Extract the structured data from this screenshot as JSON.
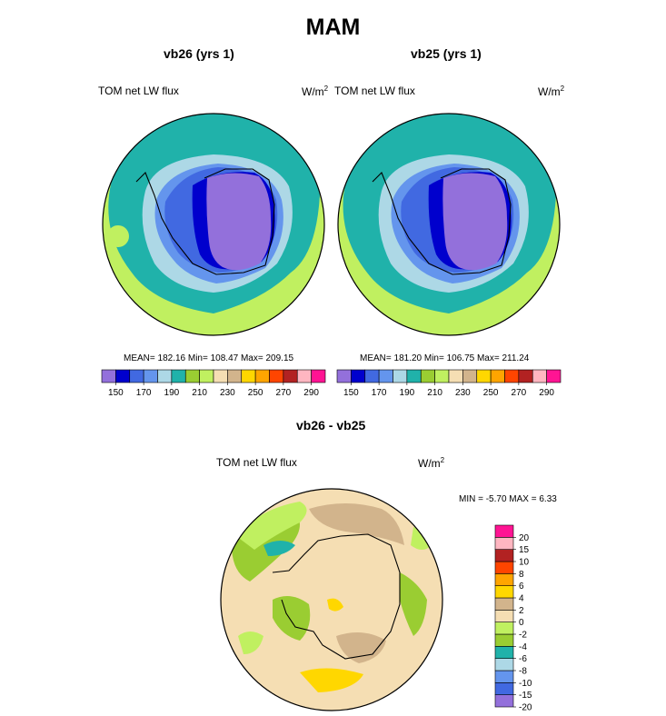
{
  "page": {
    "title": "MAM"
  },
  "panels": [
    {
      "id": "vb26",
      "title": "vb26 (yrs 1)",
      "left_label": "TOM net LW flux",
      "units_base": "W/m",
      "units_exp": "2",
      "stats": "MEAN= 182.16  Min= 108.47  Max= 209.15"
    },
    {
      "id": "vb25",
      "title": "vb25 (yrs 1)",
      "left_label": "TOM net LW flux",
      "units_base": "W/m",
      "units_exp": "2",
      "stats": "MEAN= 181.20  Min= 106.75  Max= 211.24"
    }
  ],
  "diff_panel": {
    "title": "vb26 - vb25",
    "left_label": "TOM net LW flux",
    "units_base": "W/m",
    "units_exp": "2",
    "minmax": "MIN =  -5.70 MAX =   6.33"
  },
  "chart_data": [
    {
      "type": "heatmap",
      "title": "vb26 (yrs 1)",
      "projection": "south polar stereographic",
      "variable": "TOM net LW flux",
      "units": "W/m2",
      "mean": 182.16,
      "min": 108.47,
      "max": 209.15,
      "colorbar_levels": [
        150,
        160,
        170,
        180,
        190,
        200,
        210,
        220,
        230,
        240,
        250,
        260,
        270,
        280,
        290
      ],
      "colorbar_ticks": [
        "150",
        "170",
        "190",
        "210",
        "230",
        "250",
        "270",
        "290"
      ],
      "colorbar_colors": [
        "#9370DB",
        "#0000CD",
        "#4169E1",
        "#6495ED",
        "#ADD8E6",
        "#20B2AA",
        "#9ACD32",
        "#C0F060",
        "#F5DEB3",
        "#D2B48C",
        "#FFD700",
        "#FFA500",
        "#FF4500",
        "#B22222",
        "#FFB6C1",
        "#FF1493"
      ]
    },
    {
      "type": "heatmap",
      "title": "vb25 (yrs 1)",
      "projection": "south polar stereographic",
      "variable": "TOM net LW flux",
      "units": "W/m2",
      "mean": 181.2,
      "min": 106.75,
      "max": 211.24,
      "colorbar_levels": [
        150,
        160,
        170,
        180,
        190,
        200,
        210,
        220,
        230,
        240,
        250,
        260,
        270,
        280,
        290
      ],
      "colorbar_ticks": [
        "150",
        "170",
        "190",
        "210",
        "230",
        "250",
        "270",
        "290"
      ],
      "colorbar_colors": [
        "#9370DB",
        "#0000CD",
        "#4169E1",
        "#6495ED",
        "#ADD8E6",
        "#20B2AA",
        "#9ACD32",
        "#C0F060",
        "#F5DEB3",
        "#D2B48C",
        "#FFD700",
        "#FFA500",
        "#FF4500",
        "#B22222",
        "#FFB6C1",
        "#FF1493"
      ]
    },
    {
      "type": "heatmap",
      "title": "vb26 - vb25",
      "projection": "south polar stereographic",
      "variable": "TOM net LW flux",
      "units": "W/m2",
      "min": -5.7,
      "max": 6.33,
      "colorbar_levels": [
        -20,
        -15,
        -10,
        -8,
        -6,
        -4,
        -2,
        0,
        2,
        4,
        6,
        8,
        10,
        15,
        20
      ],
      "colorbar_ticks": [
        "20",
        "15",
        "10",
        "8",
        "6",
        "4",
        "2",
        "0",
        "-2",
        "-4",
        "-6",
        "-8",
        "-10",
        "-15",
        "-20"
      ],
      "colorbar_colors_bottom_to_top": [
        "#9370DB",
        "#4169E1",
        "#6495ED",
        "#ADD8E6",
        "#20B2AA",
        "#9ACD32",
        "#C0F060",
        "#F5DEB3",
        "#D2B48C",
        "#FFD700",
        "#FFA500",
        "#FF4500",
        "#B22222",
        "#FFB6C1",
        "#FF1493"
      ]
    }
  ]
}
